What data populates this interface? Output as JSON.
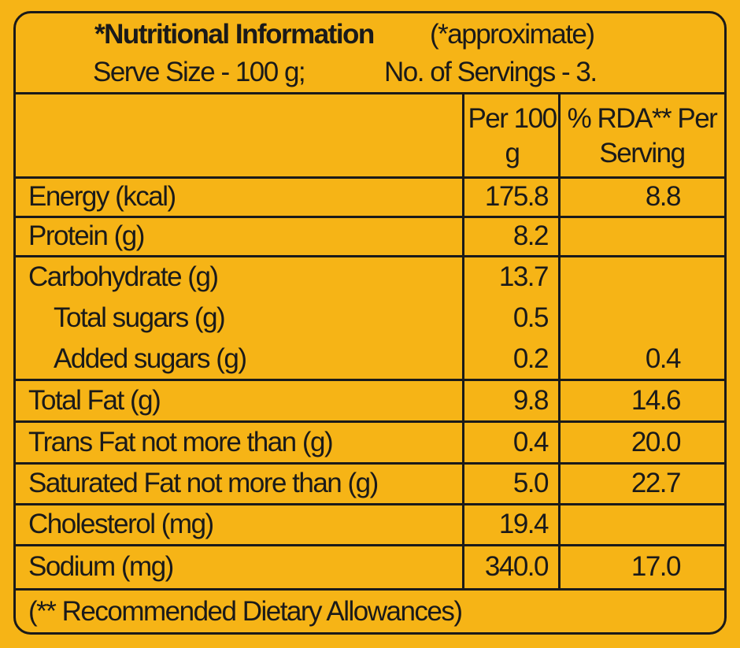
{
  "header": {
    "title": "*Nutritional Information",
    "note": "(*approximate)",
    "serve_size": "Serve Size - 100 g;",
    "servings": "No. of Servings - 3."
  },
  "table": {
    "columns": [
      "Per 100 g",
      "% RDA** Per Serving"
    ],
    "rows": [
      {
        "nutrient": "Energy (kcal)",
        "per_100g": "175.8",
        "rda": "8.8"
      },
      {
        "nutrient": "Protein (g)",
        "per_100g": "8.2"
      },
      {
        "nutrient": "Carbohydrate (g)",
        "per_100g": "13.7"
      },
      {
        "nutrient": "Total sugars (g)",
        "per_100g": "0.5"
      },
      {
        "nutrient": "Added sugars (g)",
        "per_100g": "0.2",
        "rda": "0.4"
      },
      {
        "nutrient": "Total Fat (g)",
        "per_100g": "9.8",
        "rda": "14.6"
      },
      {
        "nutrient": "Trans Fat not more than (g)",
        "per_100g": "0.4",
        "rda": "20.0"
      },
      {
        "nutrient": "Saturated Fat not more than (g)",
        "per_100g": "5.0",
        "rda": "22.7"
      },
      {
        "nutrient": "Cholesterol (mg)",
        "per_100g": "19.4"
      },
      {
        "nutrient": "Sodium (mg)",
        "per_100g": "340.0",
        "rda": "17.0"
      }
    ]
  },
  "footer": "(** Recommended Dietary Allowances)"
}
